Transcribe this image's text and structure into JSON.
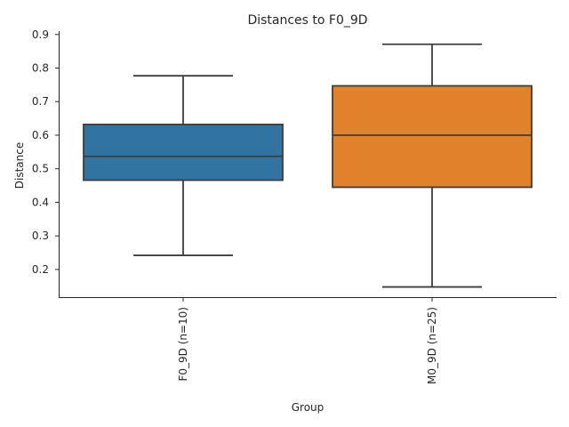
{
  "chart_data": {
    "type": "box",
    "title": "Distances to F0_9D",
    "xlabel": "Group",
    "ylabel": "Distance",
    "ylim": [
      0.115,
      0.91
    ],
    "yticks": [
      "0.2",
      "0.3",
      "0.4",
      "0.5",
      "0.6",
      "0.7",
      "0.8",
      "0.9"
    ],
    "grid": false,
    "categories": [
      "F0_9D (n=10)",
      "M0_9D (n=25)"
    ],
    "boxes": [
      {
        "category": "F0_9D (n=10)",
        "whisker_low": 0.242,
        "q1": 0.466,
        "median": 0.537,
        "q3": 0.632,
        "whisker_high": 0.777,
        "color": "#3274a1"
      },
      {
        "category": "M0_9D (n=25)",
        "whisker_low": 0.148,
        "q1": 0.445,
        "median": 0.6,
        "q3": 0.747,
        "whisker_high": 0.871,
        "color": "#e1812c"
      }
    ]
  }
}
